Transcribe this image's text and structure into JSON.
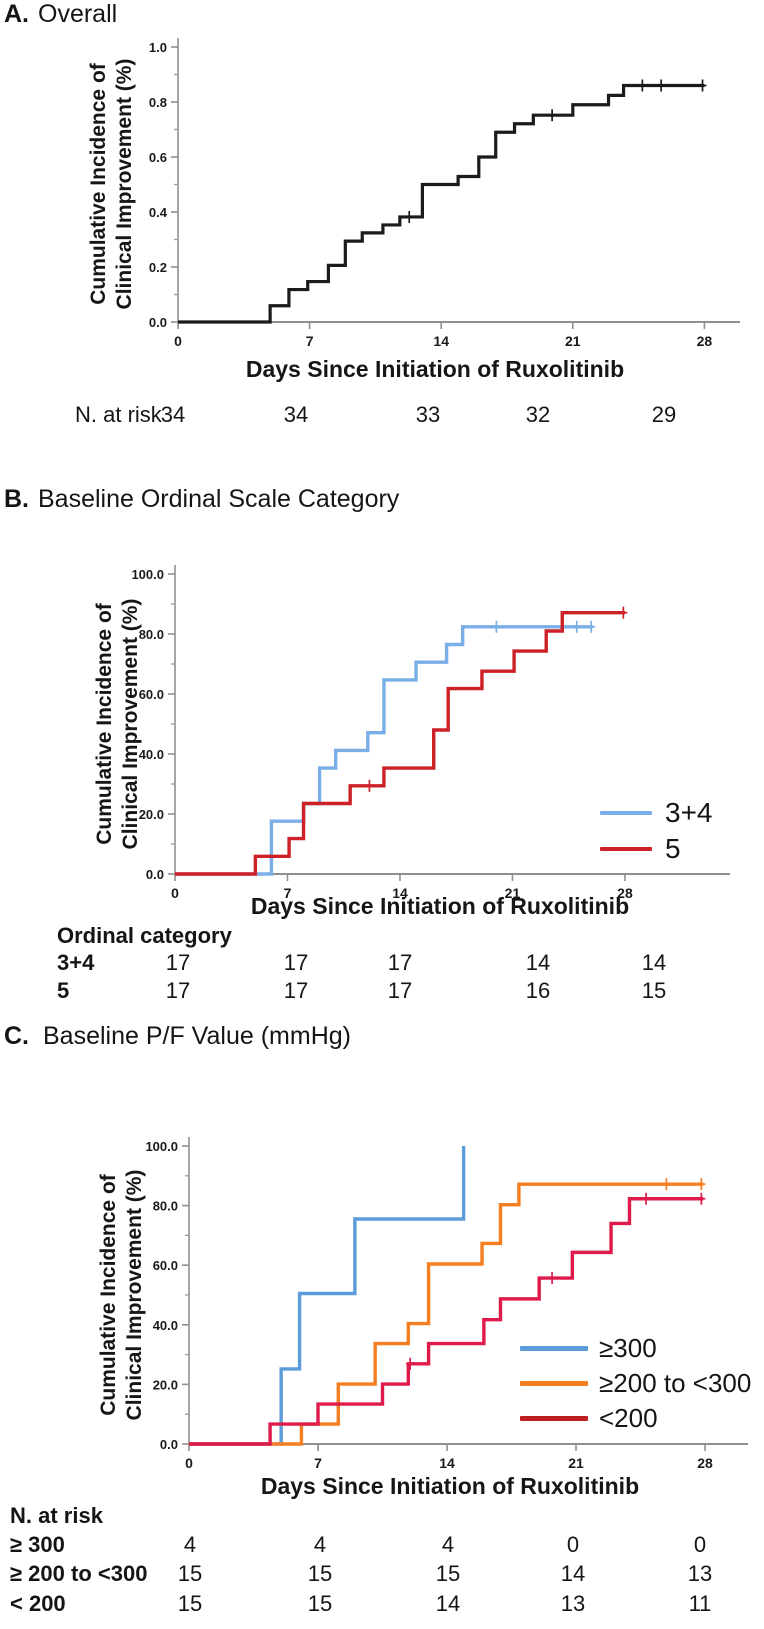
{
  "chart_data": [
    {
      "id": "A",
      "type": "step-line",
      "label": "A.",
      "title": "Overall",
      "ylabel_line1": "Cumulative Incidence of",
      "ylabel_line2": "Clinical Improvement (%)",
      "xlabel": "Days Since Initiation of Ruxolitinib",
      "xlim": [
        0,
        30
      ],
      "ylim": [
        0,
        1.0
      ],
      "x_ticks": [
        {
          "v": 0,
          "label": "0"
        },
        {
          "v": 7,
          "label": "7"
        },
        {
          "v": 14,
          "label": "14"
        },
        {
          "v": 21,
          "label": "21"
        },
        {
          "v": 28,
          "label": "28"
        }
      ],
      "y_ticks": [
        {
          "v": 0,
          "label": "0.0"
        },
        {
          "v": 0.2,
          "label": "0.2"
        },
        {
          "v": 0.4,
          "label": "0.4"
        },
        {
          "v": 0.6,
          "label": "0.6"
        },
        {
          "v": 0.8,
          "label": "0.8"
        },
        {
          "v": 1.0,
          "label": "1.0"
        }
      ],
      "y_minor_step": 0.1,
      "grid": false,
      "series": [
        {
          "name": "Overall",
          "color": "#1b1b1b",
          "points": [
            [
              0,
              0
            ],
            [
              4.9,
              0.059
            ],
            [
              5.9,
              0.118
            ],
            [
              6.9,
              0.147
            ],
            [
              8,
              0.206
            ],
            [
              8.9,
              0.294
            ],
            [
              9.8,
              0.324
            ],
            [
              10.9,
              0.353
            ],
            [
              11.8,
              0.382
            ],
            [
              13,
              0.5
            ],
            [
              14.9,
              0.529
            ],
            [
              16,
              0.6
            ],
            [
              16.9,
              0.69
            ],
            [
              17.9,
              0.721
            ],
            [
              18.9,
              0.752
            ],
            [
              21,
              0.79
            ],
            [
              22.9,
              0.824
            ],
            [
              23.7,
              0.86
            ],
            [
              28,
              0.86
            ]
          ],
          "censors": [
            [
              12.3,
              0.382
            ],
            [
              19.9,
              0.752
            ],
            [
              24.7,
              0.86
            ],
            [
              25.7,
              0.86
            ],
            [
              27.9,
              0.86
            ]
          ]
        }
      ],
      "risk_table": {
        "header": "N. at risk",
        "rows": [
          {
            "label": "",
            "values": [
              "34",
              "34",
              "33",
              "32",
              "29"
            ]
          }
        ]
      }
    },
    {
      "id": "B",
      "type": "step-line",
      "label": "B.",
      "title": "Baseline Ordinal Scale Category",
      "ylabel_line1": "Cumulative Incidence of",
      "ylabel_line2": "Clinical Improvement (%)",
      "xlabel": "Days Since Initiation of Ruxolitinib",
      "xlim": [
        0,
        30
      ],
      "ylim": [
        0,
        100
      ],
      "x_ticks": [
        {
          "v": 0,
          "label": "0"
        },
        {
          "v": 7,
          "label": "7"
        },
        {
          "v": 14,
          "label": "14"
        },
        {
          "v": 21,
          "label": "21"
        },
        {
          "v": 28,
          "label": "28"
        }
      ],
      "y_ticks": [
        {
          "v": 0,
          "label": "0.0"
        },
        {
          "v": 20,
          "label": "20.0"
        },
        {
          "v": 40,
          "label": "40.0"
        },
        {
          "v": 60,
          "label": "60.0"
        },
        {
          "v": 80,
          "label": "80.0"
        },
        {
          "v": 100,
          "label": "100.0"
        }
      ],
      "y_minor_step": 10,
      "grid": false,
      "legend_position": "lower-right",
      "series": [
        {
          "name": "3+4",
          "color": "#7AAEE6",
          "points": [
            [
              0,
              0
            ],
            [
              6,
              17.6
            ],
            [
              8,
              23.5
            ],
            [
              9,
              35.3
            ],
            [
              10,
              41.2
            ],
            [
              12,
              47.1
            ],
            [
              13,
              64.7
            ],
            [
              15,
              70.6
            ],
            [
              16.9,
              76.5
            ],
            [
              17.9,
              82.4
            ],
            [
              26,
              82.4
            ]
          ],
          "censors": [
            [
              20,
              82.4
            ],
            [
              25,
              82.4
            ],
            [
              25.9,
              82.4
            ]
          ]
        },
        {
          "name": "5",
          "color": "#CE2127",
          "points": [
            [
              0,
              0
            ],
            [
              5,
              5.9
            ],
            [
              7.1,
              11.8
            ],
            [
              8,
              23.5
            ],
            [
              10.9,
              29.4
            ],
            [
              13,
              35.3
            ],
            [
              16.1,
              48.0
            ],
            [
              17,
              61.8
            ],
            [
              19.1,
              67.6
            ],
            [
              21.1,
              74.3
            ],
            [
              23.1,
              81.0
            ],
            [
              24.1,
              87.1
            ],
            [
              28,
              87.1
            ]
          ],
          "censors": [
            [
              12.1,
              29.4
            ],
            [
              27.9,
              87.1
            ]
          ]
        }
      ],
      "risk_table": {
        "header": "Ordinal category",
        "rows": [
          {
            "label": "3+4",
            "values": [
              "17",
              "17",
              "17",
              "14",
              "14"
            ]
          },
          {
            "label": "5",
            "values": [
              "17",
              "17",
              "17",
              "16",
              "15"
            ]
          }
        ]
      }
    },
    {
      "id": "C",
      "type": "step-line",
      "label": "C.",
      "title": "Baseline P/F Value (mmHg)",
      "ylabel_line1": "Cumulative Incidence of",
      "ylabel_line2": "Clinical Improvement (%)",
      "xlabel": "Days Since Initiation of Ruxolitinib",
      "xlim": [
        0,
        30
      ],
      "ylim": [
        0,
        100
      ],
      "x_ticks": [
        {
          "v": 0,
          "label": "0"
        },
        {
          "v": 7,
          "label": "7"
        },
        {
          "v": 14,
          "label": "14"
        },
        {
          "v": 21,
          "label": "21"
        },
        {
          "v": 28,
          "label": "28"
        }
      ],
      "y_ticks": [
        {
          "v": 0,
          "label": "0.0"
        },
        {
          "v": 20,
          "label": "20.0"
        },
        {
          "v": 40,
          "label": "40.0"
        },
        {
          "v": 60,
          "label": "60.0"
        },
        {
          "v": 80,
          "label": "80.0"
        },
        {
          "v": 100,
          "label": "100.0"
        }
      ],
      "y_minor_step": 10,
      "grid": false,
      "legend_position": "lower-right",
      "series": [
        {
          "name": "≥300",
          "color": "#5C9CD9",
          "points": [
            [
              0,
              0
            ],
            [
              5,
              25.2
            ],
            [
              6,
              50.5
            ],
            [
              9,
              75.5
            ],
            [
              14.9,
              100
            ]
          ],
          "censors": []
        },
        {
          "name": "≥200 to <300",
          "color": "#F57E20",
          "points": [
            [
              0,
              0
            ],
            [
              6.1,
              6.7
            ],
            [
              8.1,
              20.1
            ],
            [
              10.1,
              33.7
            ],
            [
              11.9,
              40.4
            ],
            [
              13,
              60.4
            ],
            [
              15.9,
              67.3
            ],
            [
              16.9,
              80.3
            ],
            [
              17.9,
              87.2
            ],
            [
              27.9,
              87.2
            ]
          ],
          "censors": [
            [
              25.9,
              87.2
            ],
            [
              27.8,
              87.2
            ]
          ]
        },
        {
          "name": "<200",
          "color": "#DE1B4B",
          "key_color": "#BE1E22",
          "points": [
            [
              0,
              0
            ],
            [
              4.4,
              6.7
            ],
            [
              7,
              13.4
            ],
            [
              10.5,
              20.1
            ],
            [
              11.9,
              26.9
            ],
            [
              13,
              33.7
            ],
            [
              16,
              41.7
            ],
            [
              16.9,
              48.7
            ],
            [
              19,
              55.7
            ],
            [
              20.8,
              64.3
            ],
            [
              22.9,
              74.0
            ],
            [
              23.9,
              82.3
            ],
            [
              27.9,
              82.3
            ]
          ],
          "censors": [
            [
              12,
              26.9
            ],
            [
              19.7,
              55.7
            ],
            [
              24.8,
              82.3
            ],
            [
              27.8,
              82.3
            ]
          ]
        }
      ],
      "risk_table": {
        "header": "N. at risk",
        "rows": [
          {
            "label": "≥ 300",
            "values": [
              "4",
              "4",
              "4",
              "0",
              "0"
            ]
          },
          {
            "label": "≥ 200 to <300",
            "values": [
              "15",
              "15",
              "15",
              "14",
              "13"
            ]
          },
          {
            "label": "< 200",
            "values": [
              "15",
              "15",
              "14",
              "13",
              "11"
            ]
          }
        ]
      }
    }
  ]
}
